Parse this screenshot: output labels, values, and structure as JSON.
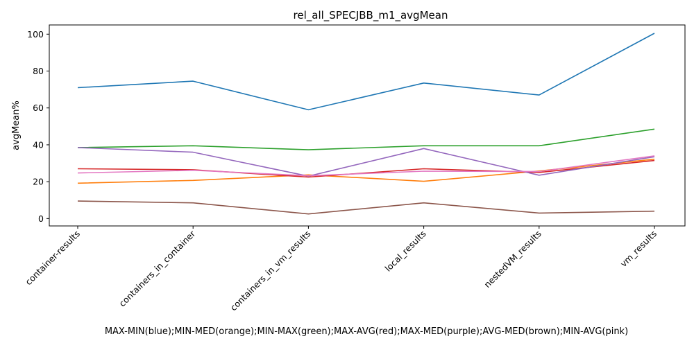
{
  "chart_data": {
    "type": "line",
    "title": "rel_all_SPECJBB_m1_avgMean",
    "xlabel": "MAX-MIN(blue);MIN-MED(orange);MIN-MAX(green);MAX-AVG(red);MAX-MED(purple);AVG-MED(brown);MIN-AVG(pink)",
    "ylabel": "avgMean%",
    "categories": [
      "container-results",
      "containers_in_container",
      "containers_in_vm_results",
      "local_results",
      "nestedVM_results",
      "vm_results"
    ],
    "ylim": [
      -4,
      105
    ],
    "yticks": [
      0,
      20,
      40,
      60,
      80,
      100
    ],
    "grid": false,
    "series": [
      {
        "color": "#1f77b4",
        "values": [
          71.0,
          74.5,
          59.0,
          73.5,
          67.0,
          100.5
        ]
      },
      {
        "color": "#ff7f0e",
        "values": [
          19.2,
          20.7,
          23.7,
          20.2,
          25.8,
          32.2
        ]
      },
      {
        "color": "#2ca02c",
        "values": [
          38.5,
          39.5,
          37.3,
          39.5,
          39.5,
          48.5
        ]
      },
      {
        "color": "#d62728",
        "values": [
          27.0,
          26.5,
          22.5,
          27.0,
          25.0,
          31.5
        ]
      },
      {
        "color": "#9467bd",
        "values": [
          38.5,
          36.0,
          23.0,
          38.0,
          23.5,
          33.5
        ]
      },
      {
        "color": "#8c564b",
        "values": [
          9.5,
          8.5,
          2.5,
          8.5,
          3.0,
          4.0
        ]
      },
      {
        "color": "#e377c2",
        "values": [
          24.7,
          26.2,
          23.2,
          25.7,
          25.5,
          34.0
        ]
      }
    ]
  }
}
